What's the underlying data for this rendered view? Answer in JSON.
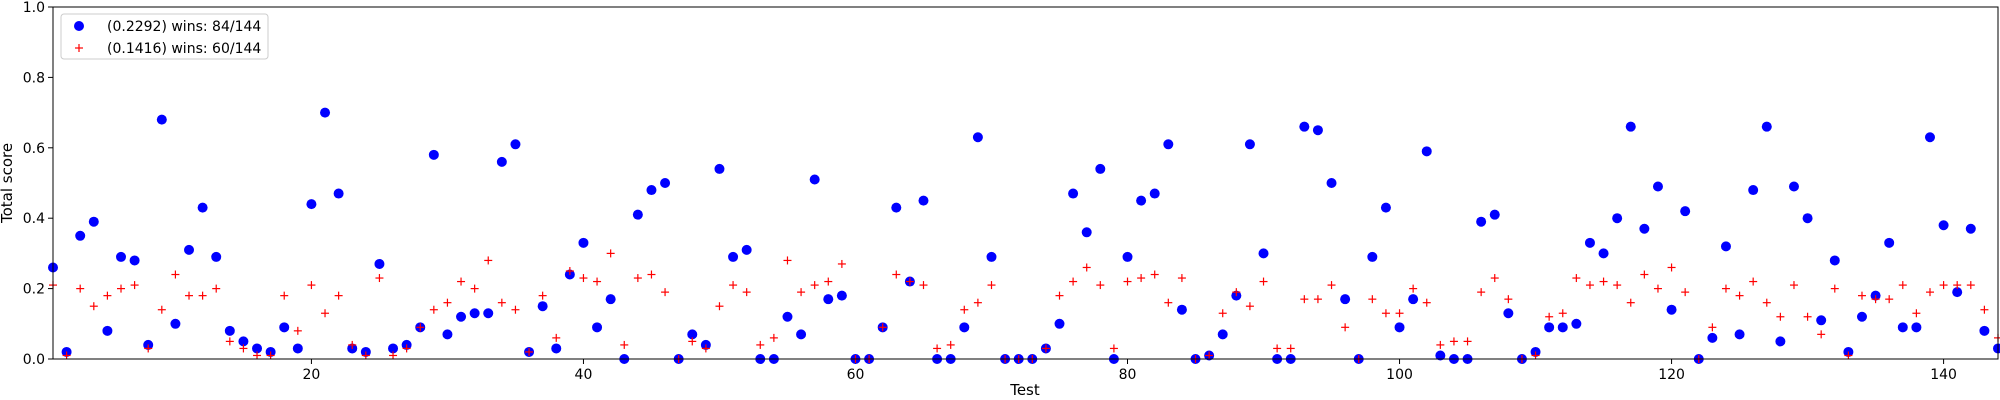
{
  "chart_data": {
    "type": "scatter",
    "xlabel": "Test",
    "ylabel": "Total score",
    "xlim": [
      1,
      144
    ],
    "ylim": [
      0,
      1.0
    ],
    "xticks": [
      "20",
      "40",
      "60",
      "80",
      "100",
      "120",
      "140"
    ],
    "yticks": [
      "0.0",
      "0.2",
      "0.4",
      "0.6",
      "0.8",
      "1.0"
    ],
    "legend_position": "top-left",
    "grid": false,
    "series": [
      {
        "name": "(0.2292) wins: 84/144",
        "marker": "circle",
        "color": "#0000ff",
        "x": [
          1,
          2,
          3,
          4,
          5,
          6,
          7,
          8,
          9,
          10,
          11,
          12,
          13,
          14,
          15,
          16,
          17,
          18,
          19,
          20,
          21,
          22,
          23,
          24,
          25,
          26,
          27,
          28,
          29,
          30,
          31,
          32,
          33,
          34,
          35,
          36,
          37,
          38,
          39,
          40,
          41,
          42,
          43,
          44,
          45,
          46,
          47,
          48,
          49,
          50,
          51,
          52,
          53,
          54,
          55,
          56,
          57,
          58,
          59,
          60,
          61,
          62,
          63,
          64,
          65,
          66,
          67,
          68,
          69,
          70,
          71,
          72,
          73,
          74,
          75,
          76,
          77,
          78,
          79,
          80,
          81,
          82,
          83,
          84,
          85,
          86,
          87,
          88,
          89,
          90,
          91,
          92,
          93,
          94,
          95,
          96,
          97,
          98,
          99,
          100,
          101,
          102,
          103,
          104,
          105,
          106,
          107,
          108,
          109,
          110,
          111,
          112,
          113,
          114,
          115,
          116,
          117,
          118,
          119,
          120,
          121,
          122,
          123,
          124,
          125,
          126,
          127,
          128,
          129,
          130,
          131,
          132,
          133,
          134,
          135,
          136,
          137,
          138,
          139,
          140,
          141,
          142,
          143,
          144
        ],
        "y": [
          0.26,
          0.02,
          0.35,
          0.39,
          0.08,
          0.29,
          0.28,
          0.04,
          0.68,
          0.1,
          0.31,
          0.43,
          0.29,
          0.08,
          0.05,
          0.03,
          0.02,
          0.09,
          0.03,
          0.44,
          0.7,
          0.47,
          0.03,
          0.02,
          0.27,
          0.03,
          0.04,
          0.09,
          0.58,
          0.07,
          0.12,
          0.13,
          0.13,
          0.56,
          0.61,
          0.02,
          0.15,
          0.03,
          0.24,
          0.33,
          0.09,
          0.17,
          0.0,
          0.41,
          0.48,
          0.5,
          0.0,
          0.07,
          0.04,
          0.54,
          0.29,
          0.31,
          0.0,
          0.0,
          0.12,
          0.07,
          0.51,
          0.17,
          0.18,
          0.0,
          0.0,
          0.09,
          0.43,
          0.22,
          0.45,
          0.0,
          0.0,
          0.09,
          0.63,
          0.29,
          0.0,
          0.0,
          0.0,
          0.03,
          0.1,
          0.47,
          0.36,
          0.54,
          0.0,
          0.29,
          0.45,
          0.47,
          0.61,
          0.14,
          0.0,
          0.01,
          0.07,
          0.18,
          0.61,
          0.3,
          0.0,
          0.0,
          0.66,
          0.65,
          0.5,
          0.17,
          0.0,
          0.29,
          0.43,
          0.09,
          0.17,
          0.59,
          0.01,
          0.0,
          0.0,
          0.39,
          0.41,
          0.13,
          0.0,
          0.02,
          0.09,
          0.09,
          0.1,
          0.33,
          0.3,
          0.4,
          0.66,
          0.37,
          0.49,
          0.14,
          0.42,
          0.0,
          0.06,
          0.32,
          0.07,
          0.48,
          0.66,
          0.05,
          0.49,
          0.4,
          0.11,
          0.28,
          0.02,
          0.12,
          0.18,
          0.33,
          0.09,
          0.09,
          0.63,
          0.38,
          0.19,
          0.37,
          0.08,
          0.03
        ]
      },
      {
        "name": "(0.1416) wins: 60/144",
        "marker": "plus",
        "color": "#ff0000",
        "x": [
          1,
          2,
          3,
          4,
          5,
          6,
          7,
          8,
          9,
          10,
          11,
          12,
          13,
          14,
          15,
          16,
          17,
          18,
          19,
          20,
          21,
          22,
          23,
          24,
          25,
          26,
          27,
          28,
          29,
          30,
          31,
          32,
          33,
          34,
          35,
          36,
          37,
          38,
          39,
          40,
          41,
          42,
          43,
          44,
          45,
          46,
          47,
          48,
          49,
          50,
          51,
          52,
          53,
          54,
          55,
          56,
          57,
          58,
          59,
          60,
          61,
          62,
          63,
          64,
          65,
          66,
          67,
          68,
          69,
          70,
          71,
          72,
          73,
          74,
          75,
          76,
          77,
          78,
          79,
          80,
          81,
          82,
          83,
          84,
          85,
          86,
          87,
          88,
          89,
          90,
          91,
          92,
          93,
          94,
          95,
          96,
          97,
          98,
          99,
          100,
          101,
          102,
          103,
          104,
          105,
          106,
          107,
          108,
          109,
          110,
          111,
          112,
          113,
          114,
          115,
          116,
          117,
          118,
          119,
          120,
          121,
          122,
          123,
          124,
          125,
          126,
          127,
          128,
          129,
          130,
          131,
          132,
          133,
          134,
          135,
          136,
          137,
          138,
          139,
          140,
          141,
          142,
          143,
          144
        ],
        "y": [
          0.21,
          0.01,
          0.2,
          0.15,
          0.18,
          0.2,
          0.21,
          0.03,
          0.14,
          0.24,
          0.18,
          0.18,
          0.2,
          0.05,
          0.03,
          0.01,
          0.01,
          0.18,
          0.08,
          0.21,
          0.13,
          0.18,
          0.04,
          0.01,
          0.23,
          0.01,
          0.03,
          0.09,
          0.14,
          0.16,
          0.22,
          0.2,
          0.28,
          0.16,
          0.14,
          0.02,
          0.18,
          0.06,
          0.25,
          0.23,
          0.22,
          0.3,
          0.04,
          0.23,
          0.24,
          0.19,
          0.0,
          0.05,
          0.03,
          0.15,
          0.21,
          0.19,
          0.04,
          0.06,
          0.28,
          0.19,
          0.21,
          0.22,
          0.27,
          0.0,
          0.0,
          0.09,
          0.24,
          0.22,
          0.21,
          0.03,
          0.04,
          0.14,
          0.16,
          0.21,
          0.0,
          0.0,
          0.0,
          0.03,
          0.18,
          0.22,
          0.26,
          0.21,
          0.03,
          0.22,
          0.23,
          0.24,
          0.16,
          0.23,
          0.0,
          0.01,
          0.13,
          0.19,
          0.15,
          0.22,
          0.03,
          0.03,
          0.17,
          0.17,
          0.21,
          0.09,
          0.0,
          0.17,
          0.13,
          0.13,
          0.2,
          0.16,
          0.04,
          0.05,
          0.05,
          0.19,
          0.23,
          0.17,
          0.0,
          0.01,
          0.12,
          0.13,
          0.23,
          0.21,
          0.22,
          0.21,
          0.16,
          0.24,
          0.2,
          0.26,
          0.19,
          0.0,
          0.09,
          0.2,
          0.18,
          0.22,
          0.16,
          0.12,
          0.21,
          0.12,
          0.07,
          0.2,
          0.01,
          0.18,
          0.17,
          0.17,
          0.21,
          0.13,
          0.19,
          0.21,
          0.21,
          0.21,
          0.14,
          0.06
        ]
      }
    ]
  }
}
